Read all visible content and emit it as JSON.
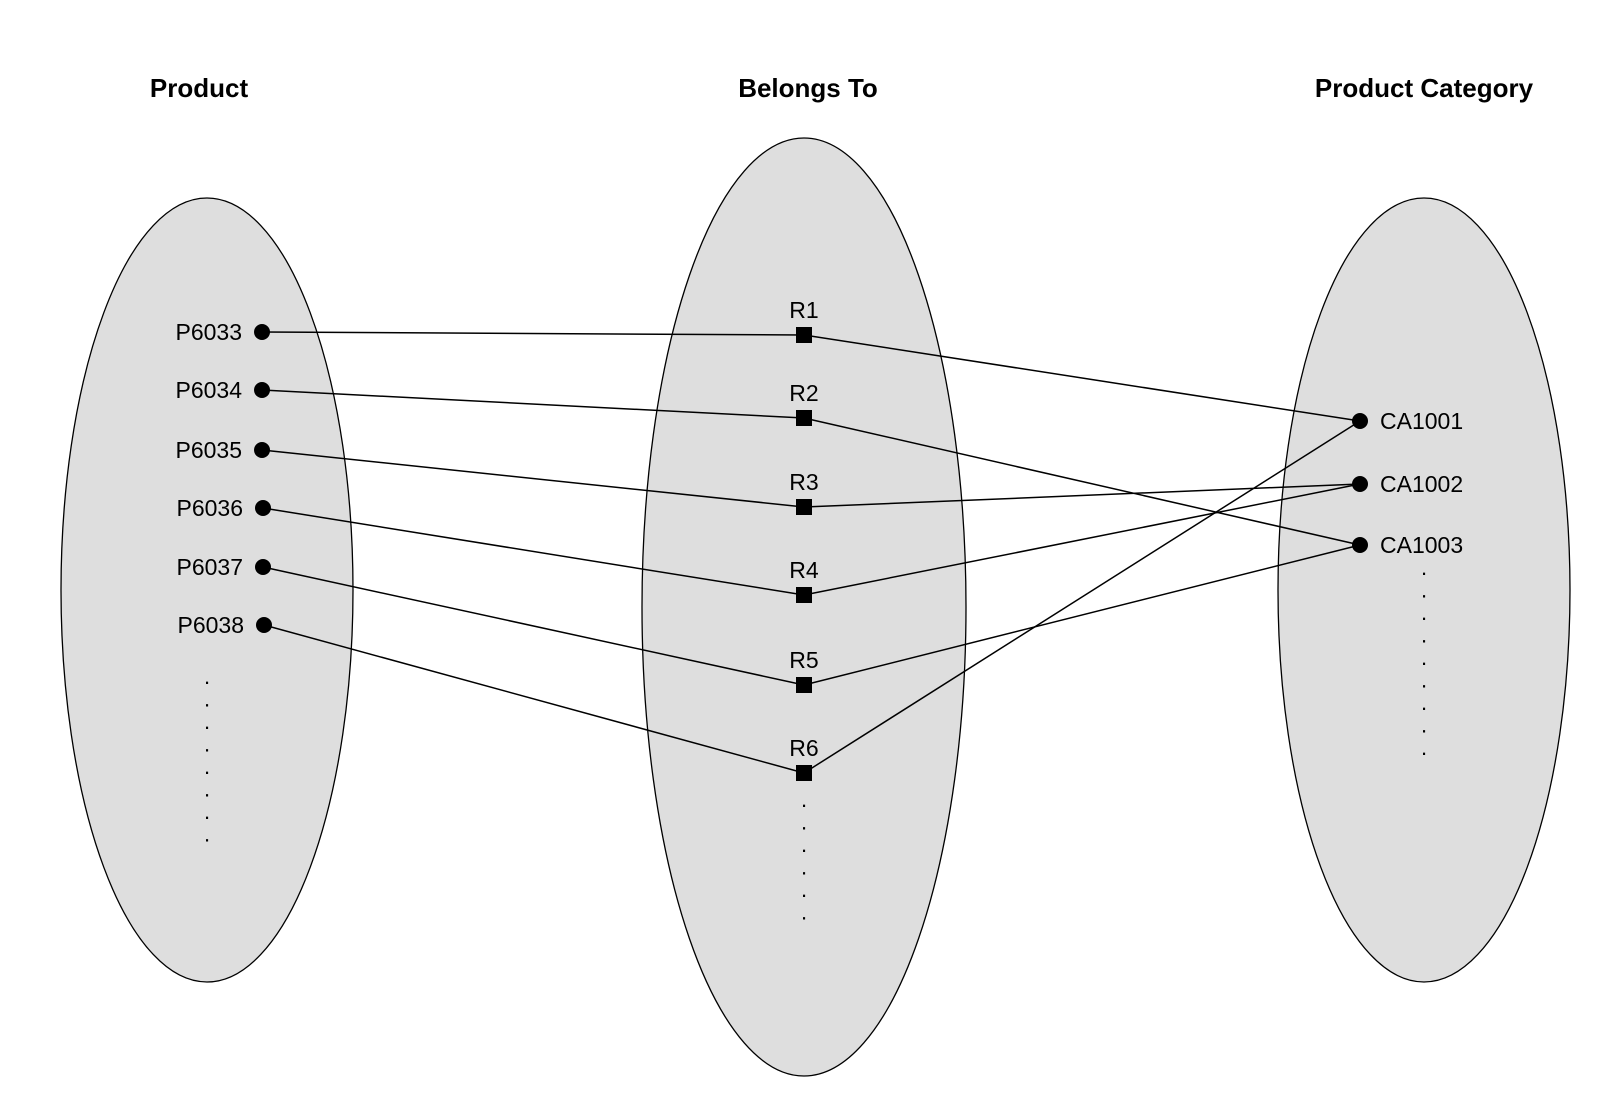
{
  "colors": {
    "set_fill": "#dedede",
    "stroke": "#000000",
    "background": "#ffffff"
  },
  "sets": {
    "product": {
      "title": "Product",
      "items": [
        "P6033",
        "P6034",
        "P6035",
        "P6036",
        "P6037",
        "P6038"
      ],
      "continuation": ". . . . . . . ."
    },
    "belongs_to": {
      "title": "Belongs To",
      "items": [
        "R1",
        "R2",
        "R3",
        "R4",
        "R5",
        "R6"
      ],
      "continuation": ". . . . . ."
    },
    "product_category": {
      "title": "Product Category",
      "items": [
        "CA1001",
        "CA1002",
        "CA1003"
      ],
      "continuation": ". . . . . . . . ."
    }
  },
  "mappings": [
    {
      "relationship": "R1",
      "product": "P6033",
      "category": "CA1001"
    },
    {
      "relationship": "R2",
      "product": "P6034",
      "category": "CA1003"
    },
    {
      "relationship": "R3",
      "product": "P6035",
      "category": "CA1002"
    },
    {
      "relationship": "R4",
      "product": "P6036",
      "category": "CA1002"
    },
    {
      "relationship": "R5",
      "product": "P6037",
      "category": "CA1003"
    },
    {
      "relationship": "R6",
      "product": "P6038",
      "category": "CA1001"
    }
  ]
}
